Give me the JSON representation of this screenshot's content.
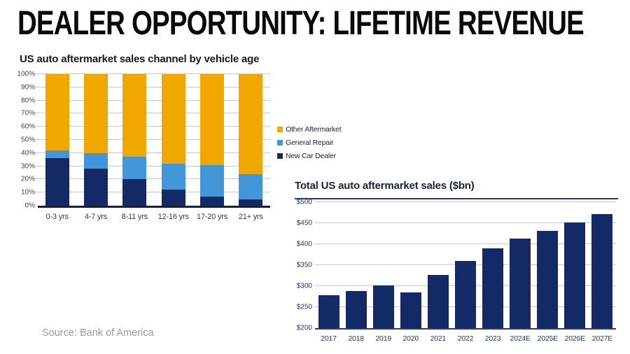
{
  "page": {
    "title": "DEALER OPPORTUNITY: LIFETIME REVENUE",
    "source": "Source: Bank of America"
  },
  "colors": {
    "orange": "#F0A800",
    "light_blue": "#4197D9",
    "navy": "#142A66",
    "grid": "#C6C6C6",
    "axis_line": "#24406E",
    "source_text": "#9A9A9A"
  },
  "chart_data": [
    {
      "id": "sales-channel-by-vehicle-age",
      "type": "bar",
      "stacked": true,
      "title": "US auto aftermarket sales channel by vehicle age",
      "categories": [
        "0-3 yrs",
        "4-7 yrs",
        "8-11 yrs",
        "12-16 yrs",
        "17-20 yrs",
        "21+ yrs"
      ],
      "series": [
        {
          "name": "New Car Dealer",
          "color_key": "navy",
          "values": [
            36,
            28,
            20,
            12,
            7,
            5
          ]
        },
        {
          "name": "General Repair",
          "color_key": "light_blue",
          "values": [
            6,
            12,
            17,
            20,
            24,
            19
          ]
        },
        {
          "name": "Other Aftermarket",
          "color_key": "orange",
          "values": [
            58,
            60,
            63,
            68,
            69,
            76
          ]
        }
      ],
      "ylim": [
        0,
        100
      ],
      "ytick_step": 10,
      "ytick_format": "percent",
      "legend_position": "right",
      "legend_order": [
        "Other Aftermarket",
        "General Repair",
        "New Car Dealer"
      ],
      "grid": true
    },
    {
      "id": "total-us-auto-aftermarket-sales",
      "type": "bar",
      "title": "Total US auto aftermarket sales ($bn)",
      "categories": [
        "2017",
        "2018",
        "2019",
        "2020",
        "2021",
        "2022",
        "2023",
        "2024E",
        "2025E",
        "2026E",
        "2027E"
      ],
      "values": [
        279,
        289,
        301,
        285,
        327,
        360,
        390,
        414,
        431,
        451,
        471
      ],
      "color_key": "navy",
      "ylim": [
        200,
        500
      ],
      "ytick_step": 50,
      "ytick_format": "dollar",
      "grid": true
    }
  ]
}
